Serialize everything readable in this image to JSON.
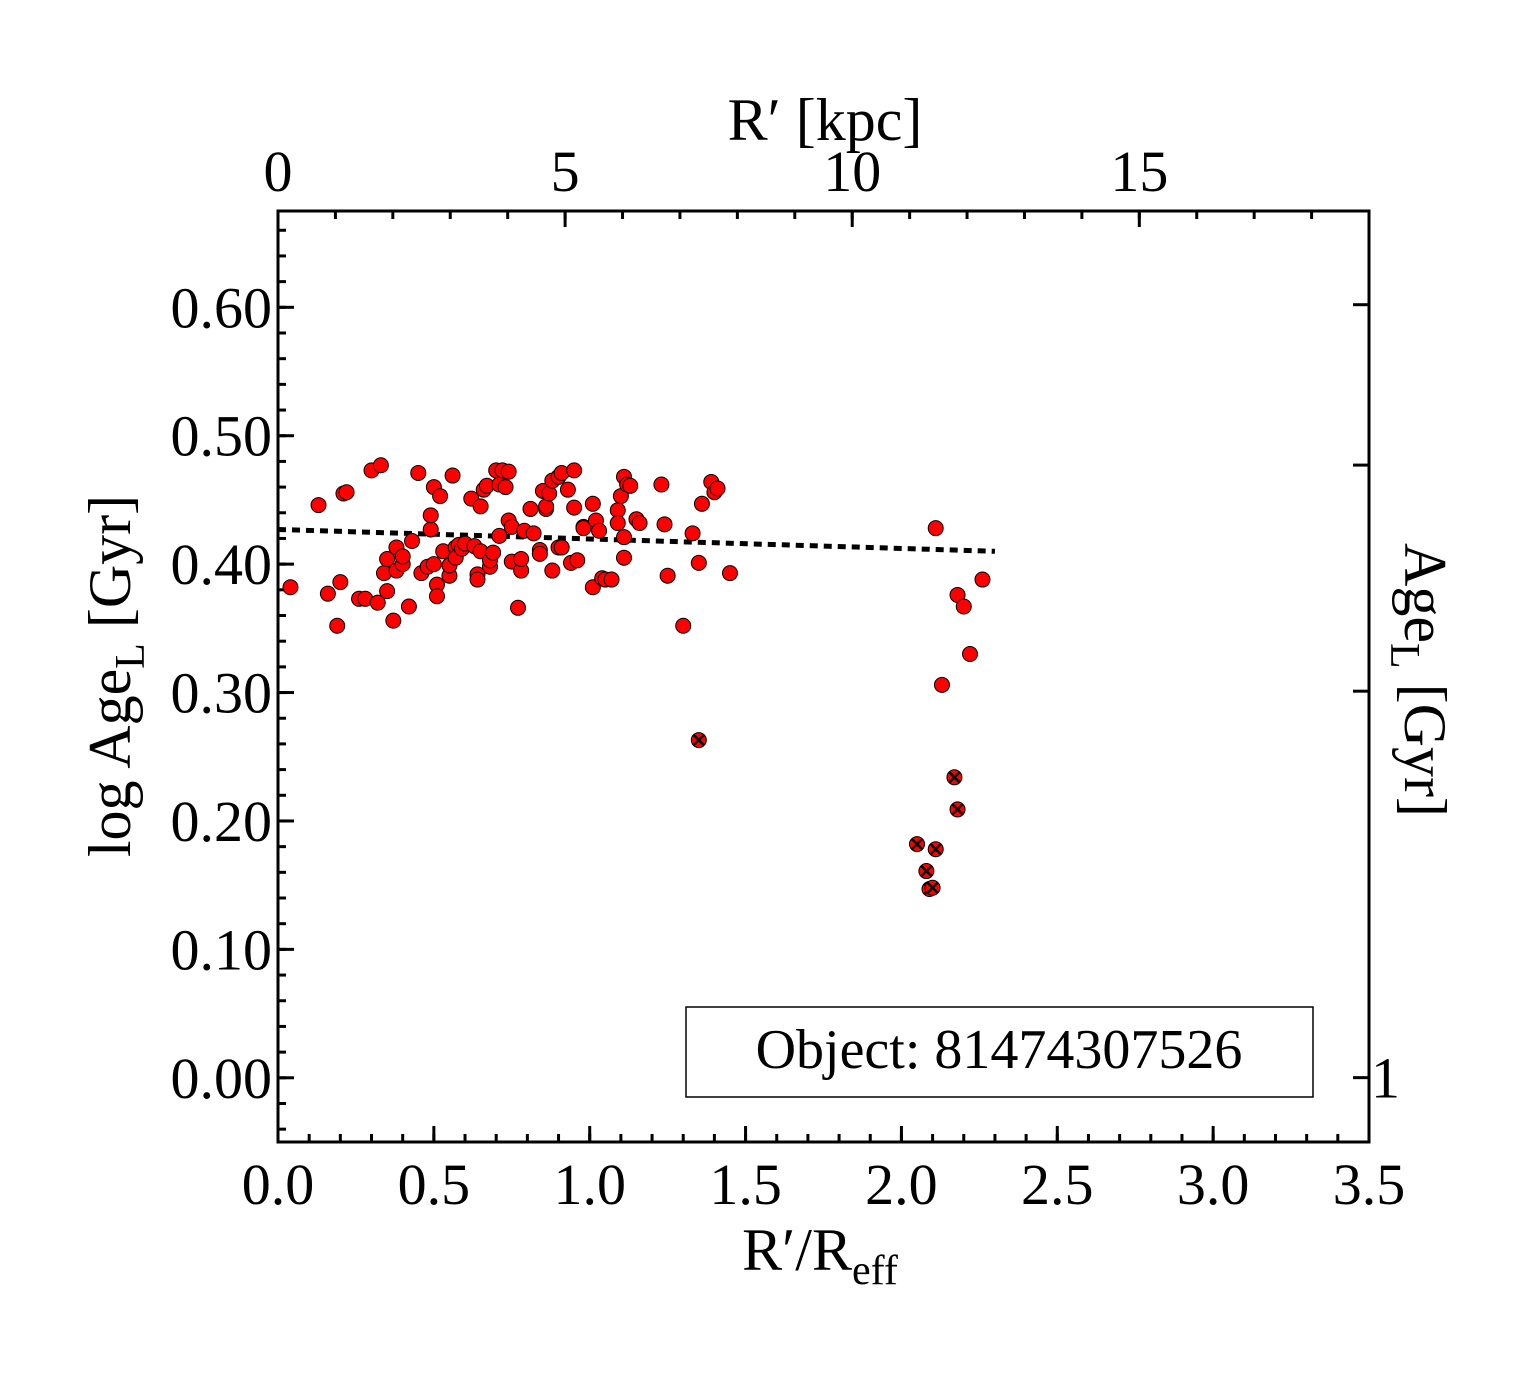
{
  "chart_data": {
    "type": "scatter",
    "xlabel": [
      {
        "text": "R′/R"
      },
      {
        "text": "eff",
        "sub": true
      }
    ],
    "ylabel": [
      {
        "text": "log Age"
      },
      {
        "text": "L",
        "sub": true
      },
      {
        "text": " [Gyr]"
      }
    ],
    "x2label": [
      {
        "text": "R′ [kpc]"
      }
    ],
    "y2label": [
      {
        "text": "Age"
      },
      {
        "text": "L",
        "sub": true
      },
      {
        "text": " [Gyr]"
      }
    ],
    "annotation": "Object: 81474307526",
    "xlim": [
      0,
      3.5
    ],
    "xticks": [
      {
        "value": 0,
        "label": "0.0"
      },
      {
        "value": 0.5,
        "label": "0.5"
      },
      {
        "value": 1,
        "label": "1.0"
      },
      {
        "value": 1.5,
        "label": "1.5"
      },
      {
        "value": 2,
        "label": "2.0"
      },
      {
        "value": 2.5,
        "label": "2.5"
      },
      {
        "value": 3,
        "label": "3.0"
      },
      {
        "value": 3.5,
        "label": "3.5"
      }
    ],
    "xminor": 0.1,
    "ylim": [
      -0.05,
      0.675
    ],
    "yticks": [
      {
        "value": 0,
        "label": "0.00"
      },
      {
        "value": 0.1,
        "label": "0.10"
      },
      {
        "value": 0.2,
        "label": "0.20"
      },
      {
        "value": 0.3,
        "label": "0.30"
      },
      {
        "value": 0.4,
        "label": "0.40"
      },
      {
        "value": 0.5,
        "label": "0.50"
      },
      {
        "value": 0.6,
        "label": "0.60"
      }
    ],
    "yminor": 0.02,
    "x2lim": [
      0,
      19.0
    ],
    "x2ticks": [
      0,
      5,
      10,
      15
    ],
    "x2minor": 1,
    "y2log": true,
    "y2lim": [
      0.891,
      4.732
    ],
    "y2ticks": [
      1
    ],
    "y2minor_ticks": [
      2,
      3,
      4
    ],
    "marker_color": "#ff0000",
    "points": {
      "x": [
        0.04,
        0.13,
        0.16,
        0.19,
        0.2,
        0.21,
        0.22,
        0.26,
        0.28,
        0.3,
        0.32,
        0.33,
        0.34,
        0.35,
        0.35,
        0.37,
        0.38,
        0.38,
        0.4,
        0.4,
        0.42,
        0.43,
        0.45,
        0.46,
        0.48,
        0.49,
        0.49,
        0.5,
        0.5,
        0.51,
        0.51,
        0.52,
        0.53,
        0.55,
        0.55,
        0.56,
        0.57,
        0.57,
        0.58,
        0.59,
        0.6,
        0.62,
        0.63,
        0.64,
        0.64,
        0.65,
        0.65,
        0.66,
        0.67,
        0.68,
        0.68,
        0.69,
        0.7,
        0.71,
        0.71,
        0.72,
        0.73,
        0.74,
        0.74,
        0.75,
        0.75,
        0.77,
        0.78,
        0.78,
        0.79,
        0.81,
        0.82,
        0.84,
        0.84,
        0.85,
        0.86,
        0.86,
        0.87,
        0.88,
        0.88,
        0.9,
        0.9,
        0.91,
        0.91,
        0.93,
        0.94,
        0.95,
        0.95,
        0.96,
        0.98,
        0.98,
        1.01,
        1.01,
        1.02,
        1.03,
        1.04,
        1.05,
        1.07,
        1.09,
        1.09,
        1.1,
        1.11,
        1.11,
        1.11,
        1.12,
        1.13,
        1.15,
        1.16,
        1.23,
        1.24,
        1.25,
        1.3,
        1.33,
        1.35,
        1.36,
        1.39,
        1.4,
        1.41,
        1.45,
        2.11,
        2.13,
        2.18,
        2.2,
        2.22,
        2.26
      ],
      "y": [
        0.382,
        0.446,
        0.377,
        0.352,
        0.386,
        0.455,
        0.456,
        0.373,
        0.373,
        0.473,
        0.37,
        0.477,
        0.393,
        0.404,
        0.379,
        0.356,
        0.413,
        0.395,
        0.4,
        0.406,
        0.367,
        0.418,
        0.471,
        0.393,
        0.398,
        0.427,
        0.438,
        0.46,
        0.4,
        0.384,
        0.375,
        0.453,
        0.41,
        0.391,
        0.399,
        0.469,
        0.413,
        0.405,
        0.415,
        0.412,
        0.416,
        0.451,
        0.414,
        0.392,
        0.388,
        0.41,
        0.445,
        0.458,
        0.461,
        0.398,
        0.403,
        0.409,
        0.473,
        0.462,
        0.422,
        0.473,
        0.46,
        0.472,
        0.434,
        0.402,
        0.429,
        0.366,
        0.395,
        0.404,
        0.426,
        0.443,
        0.424,
        0.411,
        0.408,
        0.457,
        0.443,
        0.445,
        0.455,
        0.395,
        0.465,
        0.468,
        0.413,
        0.471,
        0.413,
        0.458,
        0.401,
        0.444,
        0.473,
        0.403,
        0.429,
        0.428,
        0.382,
        0.447,
        0.434,
        0.426,
        0.389,
        0.388,
        0.388,
        0.442,
        0.432,
        0.453,
        0.421,
        0.405,
        0.468,
        0.462,
        0.461,
        0.435,
        0.432,
        0.462,
        0.431,
        0.391,
        0.352,
        0.424,
        0.401,
        0.447,
        0.464,
        0.456,
        0.459,
        0.393,
        0.428,
        0.306,
        0.376,
        0.367,
        0.33,
        0.388
      ]
    },
    "flagged": {
      "x": [
        1.35,
        2.05,
        2.08,
        2.09,
        2.1,
        2.11,
        2.17,
        2.18
      ],
      "y": [
        0.263,
        0.182,
        0.161,
        0.147,
        0.148,
        0.178,
        0.234,
        0.209
      ]
    },
    "fit": {
      "x": [
        0,
        2.3
      ],
      "y": [
        0.427,
        0.41
      ],
      "color": "#000000"
    }
  }
}
